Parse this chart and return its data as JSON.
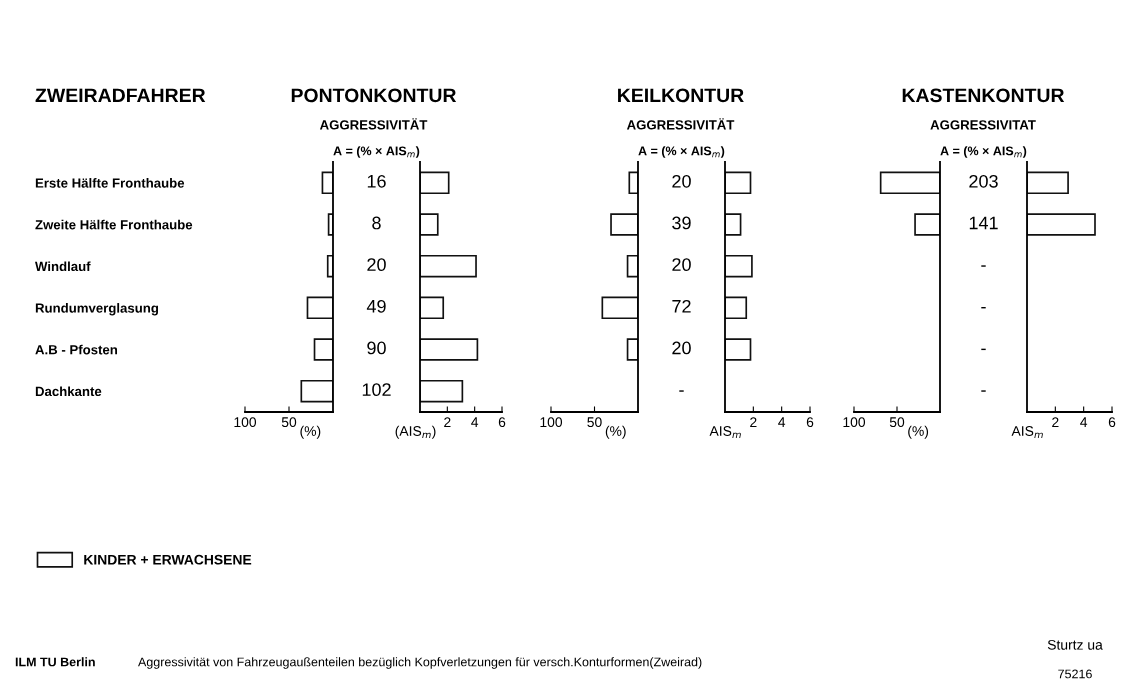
{
  "chart_data": [
    {
      "type": "bar",
      "orientation": "horizontal",
      "title": "PONTONKONTUR",
      "subtitle": "AGGRESSIVITÄT",
      "ylabel": "ZWEIRADFAHRER",
      "xlabel": "(%)",
      "categories": [
        "Erste Hälfte Fronthaube",
        "Zweite Hälfte Fronthaube",
        "Windlauf",
        "Rundumverglasung",
        "A.B - Pfosten",
        "Dachkante"
      ],
      "series": [
        {
          "name": "KINDER + ERWACHSENE",
          "color": "#ffffff",
          "values": [
            12,
            5,
            6,
            29,
            21,
            36
          ]
        }
      ],
      "xlim": [
        100,
        0
      ],
      "xticks": [
        100,
        50
      ],
      "grid": false,
      "legend": "bottom left",
      "annotations": [
        "ILM TU Berlin",
        "Aggressivität von Fahrzeugaußenteilen bezüglich Kopfverletzungen für versch.Konturformen(Zweirad)",
        "Sturtz ua",
        "75216"
      ]
    },
    {
      "type": "bar",
      "orientation": "horizontal",
      "title": "A = (% × AIS$_{m}$)",
      "xlabel": "(AIS$_{m}$)",
      "categories": [
        null,
        null,
        null,
        null,
        null,
        null
      ],
      "series": [
        {
          "color": "#ffffff",
          "values": [
            2.1,
            1.3,
            4.1,
            1.7,
            4.2,
            3.1
          ]
        }
      ],
      "xlim": [
        0,
        6
      ],
      "xticks": [
        2,
        4,
        6
      ],
      "grid": false,
      "tick_labels": "x",
      "annotations": [
        "16",
        "8",
        "20",
        "49",
        "90",
        "102"
      ]
    },
    {
      "type": "bar",
      "orientation": "horizontal",
      "title": "KEILKONTUR",
      "subtitle": "AGGRESSIVITÄT",
      "xlabel": "(%)",
      "categories": [
        null,
        null,
        null,
        null,
        null,
        null
      ],
      "series": [
        {
          "color": "#ffffff",
          "values": [
            10,
            31,
            12,
            41,
            12,
            null
          ]
        }
      ],
      "xlim": [
        100,
        0
      ],
      "xticks": [
        100,
        50
      ],
      "grid": false,
      "tick_labels": "x"
    },
    {
      "type": "bar",
      "orientation": "horizontal",
      "title": "A = (% × AIS$_{m}$)",
      "xlabel": "AIS$_{m}$",
      "categories": [
        null,
        null,
        null,
        null,
        null,
        null
      ],
      "series": [
        {
          "color": "#ffffff",
          "values": [
            1.8,
            1.1,
            1.9,
            1.5,
            1.8,
            null
          ]
        }
      ],
      "xlim": [
        0,
        6
      ],
      "xticks": [
        2,
        4,
        6
      ],
      "grid": false,
      "tick_labels": "x",
      "annotations": [
        "20",
        "39",
        "20",
        "72",
        "20",
        "-"
      ]
    },
    {
      "type": "bar",
      "orientation": "horizontal",
      "title": "KASTENKONTUR",
      "subtitle": "AGGRESSIVITAT",
      "xlabel": "(%)",
      "categories": [
        null,
        null,
        null,
        null,
        null,
        null
      ],
      "series": [
        {
          "color": "#ffffff",
          "values": [
            69,
            29,
            null,
            null,
            null,
            null
          ]
        }
      ],
      "xlim": [
        100,
        0
      ],
      "xticks": [
        100,
        50
      ],
      "grid": false,
      "tick_labels": "x"
    },
    {
      "type": "bar",
      "orientation": "horizontal",
      "title": "A = (% × AIS$_{m}$)",
      "xlabel": "AIS$_{m}$",
      "categories": [
        null,
        null,
        null,
        null,
        null,
        null
      ],
      "series": [
        {
          "color": "#ffffff",
          "values": [
            2.9,
            4.8,
            null,
            null,
            null,
            null
          ]
        }
      ],
      "xlim": [
        0,
        6
      ],
      "xticks": [
        2,
        4,
        6
      ],
      "grid": false,
      "tick_labels": "x",
      "annotations": [
        "203",
        "141",
        "-",
        "-",
        "-",
        "-"
      ]
    }
  ]
}
